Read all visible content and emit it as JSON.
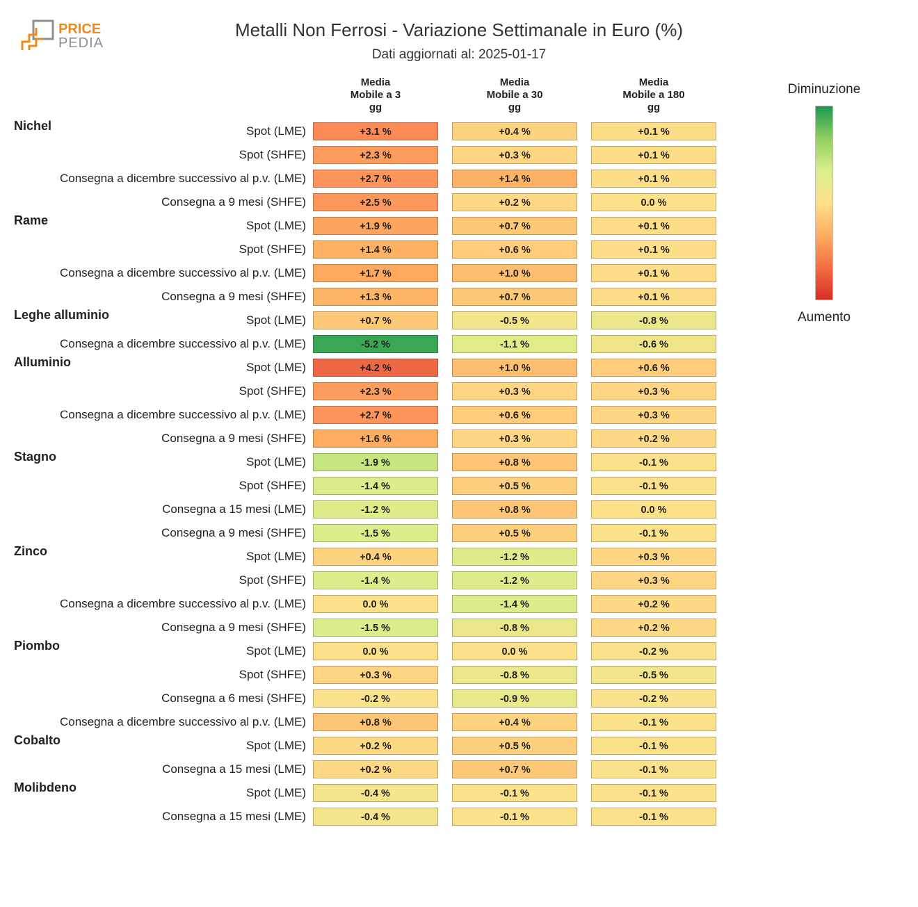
{
  "title": "Metalli Non Ferrosi - Variazione Settimanale in Euro (%)",
  "subtitle": "Dati aggiornati al: 2025-01-17",
  "logo_colors": {
    "orange": "#ed8a19",
    "gray": "#8f8f8f"
  },
  "columns": [
    {
      "l1": "Media",
      "l2": "Mobile a 3",
      "l3": "gg"
    },
    {
      "l1": "Media",
      "l2": "Mobile a 30",
      "l3": "gg"
    },
    {
      "l1": "Media",
      "l2": "Mobile a 180",
      "l3": "gg"
    }
  ],
  "legend": {
    "top_label": "Diminuzione",
    "bottom_label": "Aumento",
    "gradient_stops": [
      "#1a9850",
      "#91cf60",
      "#d9ef8b",
      "#fee08b",
      "#fdae61",
      "#f46d43",
      "#d73027"
    ]
  },
  "color_scale": {
    "min": -6.0,
    "max": 6.0,
    "stops": [
      {
        "v": -6.0,
        "c": "#1a9850"
      },
      {
        "v": -3.0,
        "c": "#91cf60"
      },
      {
        "v": -1.5,
        "c": "#d9ef8b"
      },
      {
        "v": 0.0,
        "c": "#fee08b"
      },
      {
        "v": 1.5,
        "c": "#fdae61"
      },
      {
        "v": 3.0,
        "c": "#fc8d59"
      },
      {
        "v": 6.0,
        "c": "#d73027"
      }
    ]
  },
  "rows": [
    {
      "group": "Nichel",
      "label": "Spot (LME)",
      "v": [
        3.1,
        0.4,
        0.1
      ]
    },
    {
      "group": "",
      "label": "Spot (SHFE)",
      "v": [
        2.3,
        0.3,
        0.1
      ]
    },
    {
      "group": "",
      "label": "Consegna a dicembre successivo al p.v. (LME)",
      "v": [
        2.7,
        1.4,
        0.1
      ]
    },
    {
      "group": "",
      "label": "Consegna a 9 mesi (SHFE)",
      "v": [
        2.5,
        0.2,
        0.0
      ]
    },
    {
      "group": "Rame",
      "label": "Spot (LME)",
      "v": [
        1.9,
        0.7,
        0.1
      ]
    },
    {
      "group": "",
      "label": "Spot (SHFE)",
      "v": [
        1.4,
        0.6,
        0.1
      ]
    },
    {
      "group": "",
      "label": "Consegna a dicembre successivo al p.v. (LME)",
      "v": [
        1.7,
        1.0,
        0.1
      ]
    },
    {
      "group": "",
      "label": "Consegna a 9 mesi (SHFE)",
      "v": [
        1.3,
        0.7,
        0.1
      ]
    },
    {
      "group": "Leghe alluminio",
      "label": "Spot (LME)",
      "v": [
        0.7,
        -0.5,
        -0.8
      ]
    },
    {
      "group": "",
      "label": "Consegna a dicembre successivo al p.v. (LME)",
      "v": [
        -5.2,
        -1.1,
        -0.6
      ]
    },
    {
      "group": "Alluminio",
      "label": "Spot (LME)",
      "v": [
        4.2,
        1.0,
        0.6
      ]
    },
    {
      "group": "",
      "label": "Spot (SHFE)",
      "v": [
        2.3,
        0.3,
        0.3
      ]
    },
    {
      "group": "",
      "label": "Consegna a dicembre successivo al p.v. (LME)",
      "v": [
        2.7,
        0.6,
        0.3
      ]
    },
    {
      "group": "",
      "label": "Consegna a 9 mesi (SHFE)",
      "v": [
        1.6,
        0.3,
        0.2
      ]
    },
    {
      "group": "Stagno",
      "label": "Spot (LME)",
      "v": [
        -1.9,
        0.8,
        -0.1
      ]
    },
    {
      "group": "",
      "label": "Spot (SHFE)",
      "v": [
        -1.4,
        0.5,
        -0.1
      ]
    },
    {
      "group": "",
      "label": "Consegna a 15 mesi (LME)",
      "v": [
        -1.2,
        0.8,
        0.0
      ]
    },
    {
      "group": "",
      "label": "Consegna a 9 mesi (SHFE)",
      "v": [
        -1.5,
        0.5,
        -0.1
      ]
    },
    {
      "group": "Zinco",
      "label": "Spot (LME)",
      "v": [
        0.4,
        -1.2,
        0.3
      ]
    },
    {
      "group": "",
      "label": "Spot (SHFE)",
      "v": [
        -1.4,
        -1.2,
        0.3
      ]
    },
    {
      "group": "",
      "label": "Consegna a dicembre successivo al p.v. (LME)",
      "v": [
        0.0,
        -1.4,
        0.2
      ]
    },
    {
      "group": "",
      "label": "Consegna a 9 mesi (SHFE)",
      "v": [
        -1.5,
        -0.8,
        0.2
      ]
    },
    {
      "group": "Piombo",
      "label": "Spot (LME)",
      "v": [
        0.0,
        0.0,
        -0.2
      ]
    },
    {
      "group": "",
      "label": "Spot (SHFE)",
      "v": [
        0.3,
        -0.8,
        -0.5
      ]
    },
    {
      "group": "",
      "label": "Consegna a 6 mesi (SHFE)",
      "v": [
        -0.2,
        -0.9,
        -0.2
      ]
    },
    {
      "group": "",
      "label": "Consegna a dicembre successivo al p.v. (LME)",
      "v": [
        0.8,
        0.4,
        -0.1
      ]
    },
    {
      "group": "Cobalto",
      "label": "Spot (LME)",
      "v": [
        0.2,
        0.5,
        -0.1
      ]
    },
    {
      "group": "",
      "label": "Consegna a 15 mesi (LME)",
      "v": [
        0.2,
        0.7,
        -0.1
      ]
    },
    {
      "group": "Molibdeno",
      "label": "Spot (LME)",
      "v": [
        -0.4,
        -0.1,
        -0.1
      ]
    },
    {
      "group": "",
      "label": "Consegna a 15 mesi (LME)",
      "v": [
        -0.4,
        -0.1,
        -0.1
      ]
    }
  ]
}
